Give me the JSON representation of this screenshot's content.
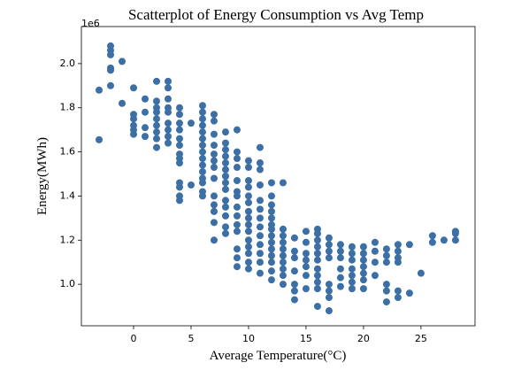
{
  "chart_data": {
    "type": "scatter",
    "title": "Scatterplot of Energy Consumption vs Avg Temp",
    "x_label": "Average Temperature(°C)",
    "y_label": "Energy(MWh)",
    "y_offset_text": "1e6",
    "color": "#3b6fa6",
    "xlim": [
      -4.54,
      29.7
    ],
    "ylim": [
      812000,
      2168000
    ],
    "xticks": [
      0,
      5,
      10,
      15,
      20,
      25
    ],
    "yticks": [
      {
        "value": 1000000,
        "label": "1.0"
      },
      {
        "value": 1200000,
        "label": "1.2"
      },
      {
        "value": 1400000,
        "label": "1.4"
      },
      {
        "value": 1600000,
        "label": "1.6"
      },
      {
        "value": 1800000,
        "label": "1.8"
      },
      {
        "value": 2000000,
        "label": "2.0"
      }
    ],
    "x": [
      -3,
      -3,
      -2,
      -2,
      -2,
      -2,
      -2,
      -2,
      -1,
      -1,
      0,
      0,
      0,
      0,
      0,
      0,
      1,
      1,
      1,
      1,
      2,
      2,
      2,
      2,
      2,
      2,
      2,
      2,
      2,
      3,
      3,
      3,
      3,
      3,
      3,
      3,
      3,
      3,
      4,
      4,
      4,
      4,
      4,
      4,
      4,
      4,
      4,
      4,
      4,
      4,
      4,
      5,
      5,
      6,
      6,
      6,
      6,
      6,
      6,
      6,
      6,
      6,
      6,
      6,
      6,
      6,
      6,
      6,
      7,
      7,
      7,
      7,
      7,
      7,
      7,
      7,
      7,
      7,
      7,
      7,
      7,
      8,
      8,
      8,
      8,
      8,
      8,
      8,
      8,
      8,
      8,
      8,
      8,
      8,
      8,
      9,
      9,
      9,
      9,
      9,
      9,
      9,
      9,
      9,
      9,
      9,
      9,
      9,
      9,
      10,
      10,
      10,
      10,
      10,
      10,
      10,
      10,
      10,
      10,
      10,
      10,
      10,
      10,
      10,
      11,
      11,
      11,
      11,
      11,
      11,
      11,
      11,
      11,
      11,
      11,
      11,
      11,
      12,
      12,
      12,
      12,
      12,
      12,
      12,
      12,
      12,
      12,
      12,
      12,
      12,
      12,
      13,
      13,
      13,
      13,
      13,
      13,
      13,
      13,
      13,
      13,
      14,
      14,
      14,
      14,
      14,
      14,
      14,
      15,
      15,
      15,
      15,
      15,
      15,
      15,
      16,
      16,
      16,
      16,
      16,
      16,
      16,
      16,
      16,
      16,
      16,
      17,
      17,
      17,
      17,
      17,
      17,
      17,
      17,
      18,
      18,
      18,
      18,
      18,
      18,
      19,
      19,
      19,
      19,
      19,
      19,
      19,
      20,
      20,
      20,
      20,
      20,
      20,
      20,
      21,
      21,
      21,
      21,
      22,
      22,
      22,
      22,
      22,
      22,
      23,
      23,
      23,
      23,
      23,
      23,
      24,
      24,
      25,
      26,
      26,
      27,
      28,
      28,
      28
    ],
    "y": [
      1880000,
      1655000,
      2080000,
      2060000,
      2040000,
      1980000,
      1970000,
      1900000,
      2010000,
      1820000,
      1890000,
      1770000,
      1750000,
      1720000,
      1700000,
      1680000,
      1840000,
      1780000,
      1710000,
      1670000,
      1920000,
      1830000,
      1800000,
      1780000,
      1750000,
      1720000,
      1690000,
      1660000,
      1620000,
      1920000,
      1890000,
      1840000,
      1800000,
      1780000,
      1730000,
      1700000,
      1670000,
      1640000,
      1800000,
      1770000,
      1730000,
      1700000,
      1660000,
      1630000,
      1590000,
      1570000,
      1550000,
      1460000,
      1440000,
      1400000,
      1380000,
      1730000,
      1450000,
      1810000,
      1780000,
      1750000,
      1720000,
      1690000,
      1660000,
      1630000,
      1600000,
      1570000,
      1540000,
      1510000,
      1480000,
      1460000,
      1420000,
      1400000,
      1770000,
      1740000,
      1680000,
      1630000,
      1590000,
      1560000,
      1530000,
      1480000,
      1400000,
      1360000,
      1330000,
      1280000,
      1200000,
      1690000,
      1640000,
      1610000,
      1580000,
      1550000,
      1520000,
      1490000,
      1460000,
      1430000,
      1380000,
      1350000,
      1310000,
      1260000,
      1230000,
      1700000,
      1600000,
      1570000,
      1530000,
      1470000,
      1420000,
      1400000,
      1350000,
      1310000,
      1270000,
      1240000,
      1160000,
      1120000,
      1080000,
      1560000,
      1530000,
      1470000,
      1440000,
      1400000,
      1370000,
      1330000,
      1300000,
      1270000,
      1240000,
      1200000,
      1170000,
      1140000,
      1100000,
      1070000,
      1620000,
      1550000,
      1520000,
      1450000,
      1380000,
      1340000,
      1300000,
      1260000,
      1220000,
      1180000,
      1140000,
      1100000,
      1050000,
      1460000,
      1400000,
      1360000,
      1330000,
      1300000,
      1270000,
      1250000,
      1220000,
      1190000,
      1160000,
      1130000,
      1100000,
      1060000,
      1020000,
      1460000,
      1250000,
      1220000,
      1190000,
      1160000,
      1130000,
      1100000,
      1070000,
      1040000,
      1000000,
      1210000,
      1150000,
      1120000,
      1060000,
      1000000,
      970000,
      930000,
      1240000,
      1190000,
      1140000,
      1110000,
      1080000,
      1040000,
      980000,
      1250000,
      1230000,
      1200000,
      1170000,
      1140000,
      1110000,
      1070000,
      1040000,
      1010000,
      980000,
      900000,
      1210000,
      1180000,
      1150000,
      1120000,
      1000000,
      970000,
      940000,
      880000,
      1180000,
      1150000,
      1120000,
      1070000,
      1030000,
      990000,
      1170000,
      1140000,
      1110000,
      1070000,
      1040000,
      1010000,
      980000,
      1170000,
      1140000,
      1110000,
      1080000,
      1050000,
      1020000,
      980000,
      1190000,
      1150000,
      1100000,
      1040000,
      1160000,
      1130000,
      1100000,
      1000000,
      970000,
      920000,
      1180000,
      1150000,
      1120000,
      1100000,
      970000,
      940000,
      1180000,
      960000,
      1050000,
      1220000,
      1190000,
      1200000,
      1240000,
      1230000,
      1200000
    ]
  }
}
